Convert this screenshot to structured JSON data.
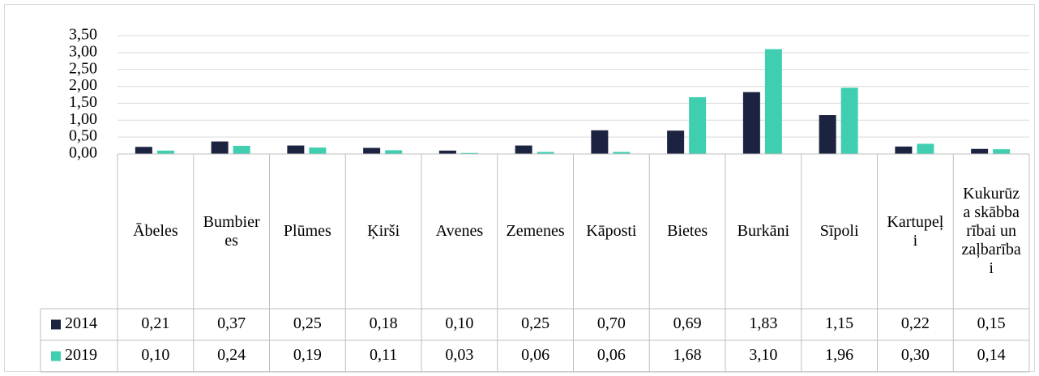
{
  "chart_data": {
    "type": "bar",
    "categories": [
      "Ābeles",
      "Bumbieres",
      "Plūmes",
      "Ķirši",
      "Avenes",
      "Zemenes",
      "Kāposti",
      "Bietes",
      "Burkāni",
      "Sīpoli",
      "Kartupeļi",
      "Kukurūza skābbarībai un zaļbarībai"
    ],
    "series": [
      {
        "name": "2014",
        "color": "#1b2340",
        "values": [
          0.21,
          0.37,
          0.25,
          0.18,
          0.1,
          0.25,
          0.7,
          0.69,
          1.83,
          1.15,
          0.22,
          0.15
        ],
        "value_labels": [
          "0,21",
          "0,37",
          "0,25",
          "0,18",
          "0,10",
          "0,25",
          "0,70",
          "0,69",
          "1,83",
          "1,15",
          "0,22",
          "0,15"
        ]
      },
      {
        "name": "2019",
        "color": "#3fcfb0",
        "values": [
          0.1,
          0.24,
          0.19,
          0.11,
          0.03,
          0.06,
          0.06,
          1.68,
          3.1,
          1.96,
          0.3,
          0.14
        ],
        "value_labels": [
          "0,10",
          "0,24",
          "0,19",
          "0,11",
          "0,03",
          "0,06",
          "0,06",
          "1,68",
          "3,10",
          "1,96",
          "0,30",
          "0,14"
        ]
      }
    ],
    "ylim": [
      0,
      3.5
    ],
    "yticks": [
      {
        "value": 0,
        "label": "0,00"
      },
      {
        "value": 0.5,
        "label": "0,50"
      },
      {
        "value": 1,
        "label": "1,00"
      },
      {
        "value": 1.5,
        "label": "1,50"
      },
      {
        "value": 2,
        "label": "2,00"
      },
      {
        "value": 2.5,
        "label": "2,50"
      },
      {
        "value": 3,
        "label": "3,00"
      },
      {
        "value": 3.5,
        "label": "3,50"
      }
    ],
    "grid": true
  }
}
